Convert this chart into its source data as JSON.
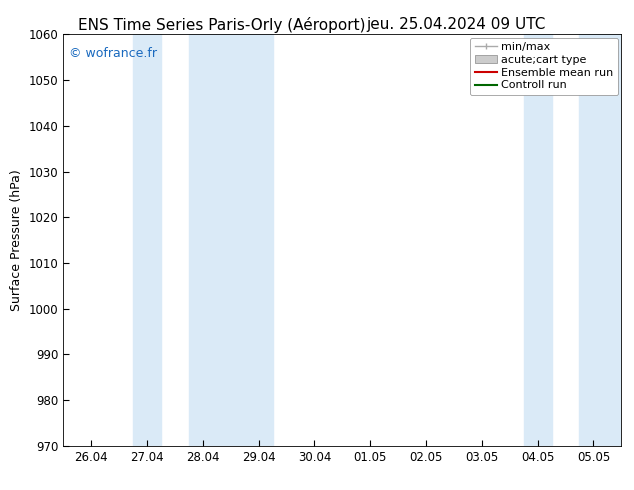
{
  "title_left": "ENS Time Series Paris-Orly (Aéroport)",
  "title_right": "jeu. 25.04.2024 09 UTC",
  "ylabel": "Surface Pressure (hPa)",
  "ylim": [
    970,
    1060
  ],
  "yticks": [
    970,
    980,
    990,
    1000,
    1010,
    1020,
    1030,
    1040,
    1050,
    1060
  ],
  "xtick_labels": [
    "26.04",
    "27.04",
    "28.04",
    "29.04",
    "30.04",
    "01.05",
    "02.05",
    "03.05",
    "04.05",
    "05.05"
  ],
  "watermark": "© wofrance.fr",
  "watermark_color": "#1a6abf",
  "background_color": "#ffffff",
  "plot_bg_color": "#ffffff",
  "shaded_bands": [
    {
      "xstart": 0.75,
      "xend": 1.25,
      "color": "#daeaf7"
    },
    {
      "xstart": 1.75,
      "xend": 3.25,
      "color": "#daeaf7"
    },
    {
      "xstart": 7.75,
      "xend": 8.25,
      "color": "#daeaf7"
    },
    {
      "xstart": 8.75,
      "xend": 9.5,
      "color": "#daeaf7"
    }
  ],
  "legend_entries": [
    {
      "label": "min/max",
      "color": "#aaaaaa",
      "type": "errorbar"
    },
    {
      "label": "acute;cart type",
      "color": "#cccccc",
      "type": "fill"
    },
    {
      "label": "Ensemble mean run",
      "color": "#cc0000",
      "type": "line"
    },
    {
      "label": "Controll run",
      "color": "#006600",
      "type": "line"
    }
  ],
  "num_xticks": 10,
  "title_fontsize": 11,
  "axis_fontsize": 9,
  "tick_fontsize": 8.5,
  "legend_fontsize": 8
}
